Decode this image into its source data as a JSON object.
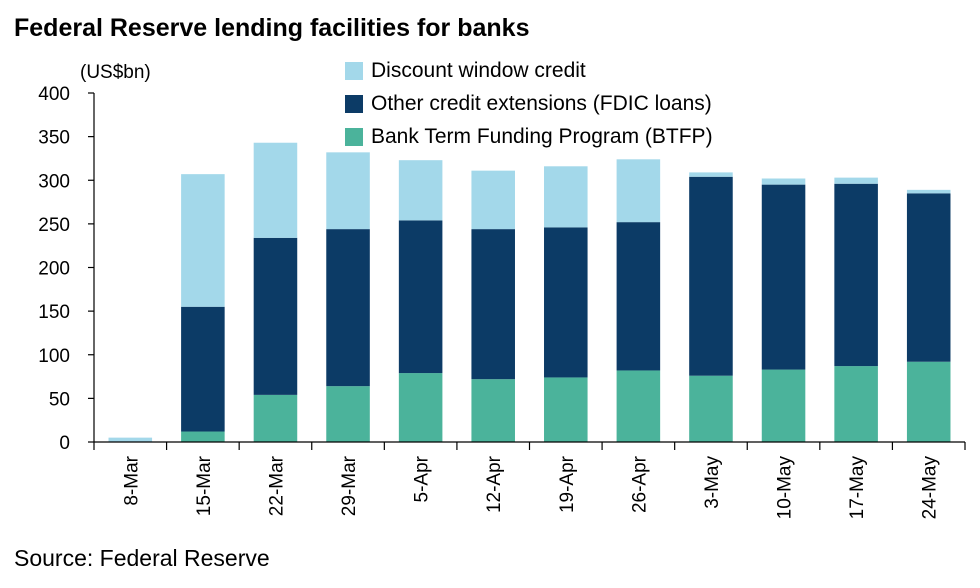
{
  "title": "Federal Reserve lending facilities for banks",
  "source": "Source: Federal Reserve",
  "chart_data": {
    "type": "bar",
    "stacked": true,
    "unit_label": "(US$bn)",
    "categories": [
      "8-Mar",
      "15-Mar",
      "22-Mar",
      "29-Mar",
      "5-Apr",
      "12-Apr",
      "19-Apr",
      "26-Apr",
      "3-May",
      "10-May",
      "17-May",
      "24-May"
    ],
    "series": [
      {
        "name": "Bank Term Funding Program (BTFP)",
        "color": "#4bb39b",
        "values": [
          0,
          12,
          54,
          64,
          79,
          72,
          74,
          82,
          76,
          83,
          87,
          92
        ]
      },
      {
        "name": "Other credit extensions (FDIC loans)",
        "color": "#0c3b66",
        "values": [
          0,
          143,
          180,
          180,
          175,
          172,
          172,
          170,
          228,
          212,
          209,
          193
        ]
      },
      {
        "name": "Discount window credit",
        "color": "#a3d8ea",
        "values": [
          5,
          152,
          109,
          88,
          69,
          67,
          70,
          72,
          5,
          7,
          7,
          4
        ]
      }
    ],
    "legend_order": [
      "Discount window credit",
      "Other credit extensions (FDIC loans)",
      "Bank Term Funding Program (BTFP)"
    ],
    "ylim": [
      0,
      400
    ],
    "yticks": [
      0,
      50,
      100,
      150,
      200,
      250,
      300,
      350,
      400
    ],
    "grid": false,
    "legend_position": "top-center"
  }
}
